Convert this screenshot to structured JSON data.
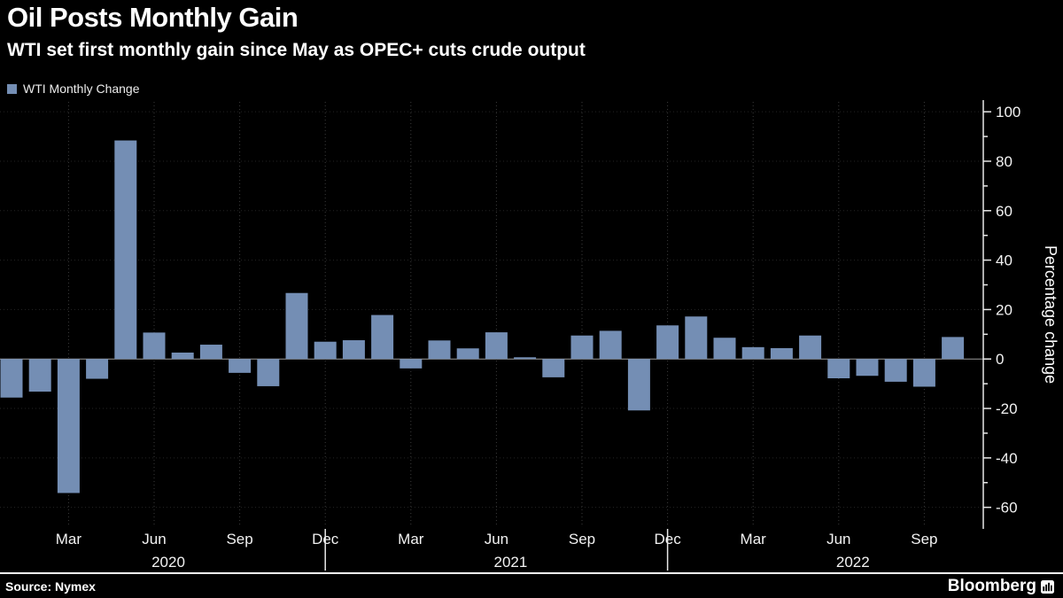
{
  "header": {
    "title": "Oil Posts Monthly Gain",
    "subtitle": "WTI set first monthly gain since May as OPEC+ cuts crude output"
  },
  "legend": {
    "label": "WTI Monthly Change",
    "color": "#748eb4"
  },
  "chart_data": {
    "type": "bar",
    "title": "Oil Posts Monthly Gain",
    "ylabel": "Percentage change",
    "bar_color": "#748eb4",
    "ylim": [
      -68,
      104
    ],
    "y_ticks": [
      100,
      80,
      60,
      40,
      20,
      0,
      -20,
      -40,
      -60
    ],
    "categories": [
      "Jan 2020",
      "Feb 2020",
      "Mar 2020",
      "Apr 2020",
      "May 2020",
      "Jun 2020",
      "Jul 2020",
      "Aug 2020",
      "Sep 2020",
      "Oct 2020",
      "Nov 2020",
      "Dec 2020",
      "Jan 2021",
      "Feb 2021",
      "Mar 2021",
      "Apr 2021",
      "May 2021",
      "Jun 2021",
      "Jul 2021",
      "Aug 2021",
      "Sep 2021",
      "Oct 2021",
      "Nov 2021",
      "Dec 2021",
      "Jan 2022",
      "Feb 2022",
      "Mar 2022",
      "Apr 2022",
      "May 2022",
      "Jun 2022",
      "Jul 2022",
      "Aug 2022",
      "Sep 2022",
      "Oct 2022"
    ],
    "values": [
      -15.6,
      -13.2,
      -54.2,
      -8.0,
      88.4,
      10.7,
      2.6,
      5.8,
      -5.6,
      -11.0,
      26.7,
      7.0,
      7.6,
      17.8,
      -3.8,
      7.5,
      4.3,
      10.8,
      0.7,
      -7.4,
      9.5,
      11.4,
      -20.8,
      13.6,
      17.2,
      8.6,
      4.8,
      4.4,
      9.5,
      -7.8,
      -6.8,
      -9.2,
      -11.2,
      8.9
    ],
    "x_ticks": [
      {
        "index": 2,
        "label": "Mar"
      },
      {
        "index": 5,
        "label": "Jun"
      },
      {
        "index": 8,
        "label": "Sep"
      },
      {
        "index": 11,
        "label": "Dec"
      },
      {
        "index": 14,
        "label": "Mar"
      },
      {
        "index": 17,
        "label": "Jun"
      },
      {
        "index": 20,
        "label": "Sep"
      },
      {
        "index": 23,
        "label": "Dec"
      },
      {
        "index": 26,
        "label": "Mar"
      },
      {
        "index": 29,
        "label": "Jun"
      },
      {
        "index": 32,
        "label": "Sep"
      }
    ],
    "year_ticks": [
      {
        "index": 5,
        "label": "2020"
      },
      {
        "index": 17,
        "label": "2021"
      },
      {
        "index": 29,
        "label": "2022"
      }
    ],
    "year_separators": [
      11,
      23
    ],
    "legend_position": "top-left",
    "grid": "dotted"
  },
  "footer": {
    "source": "Source: Nymex",
    "brand": "Bloomberg"
  }
}
